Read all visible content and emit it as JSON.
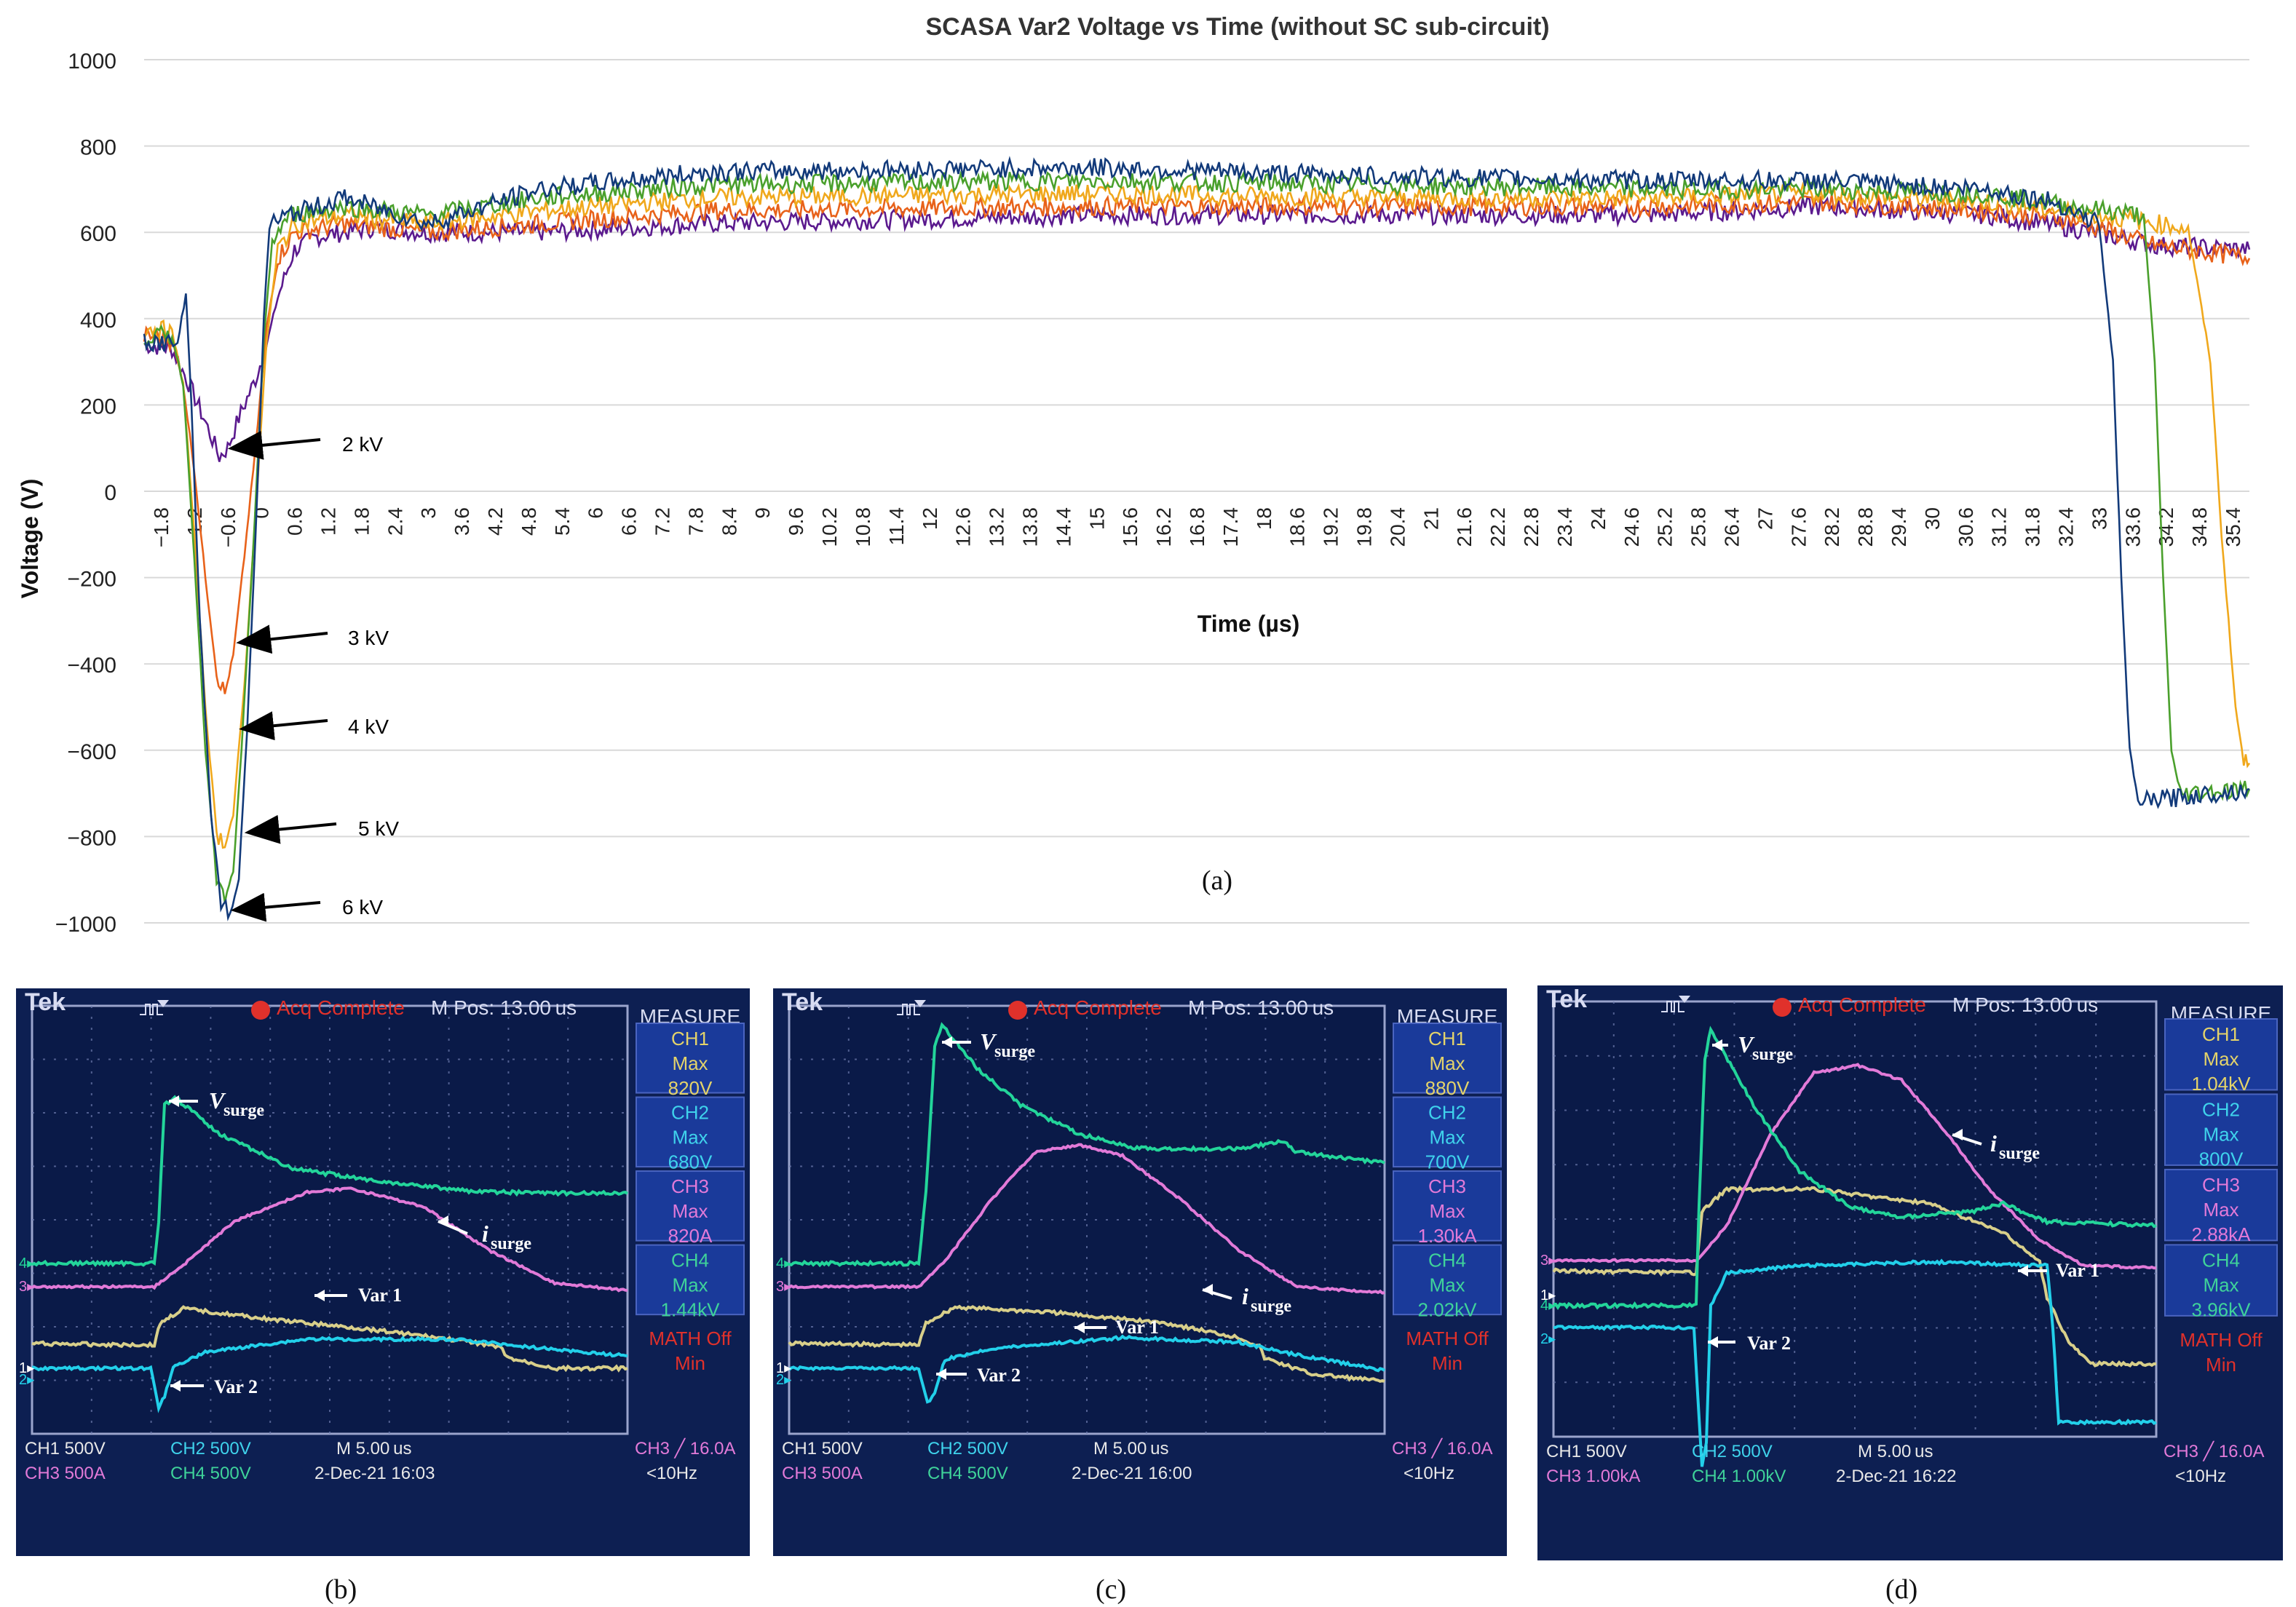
{
  "chart_data": {
    "type": "line",
    "title": "SCASA Var2 Voltage vs Time (without SC sub-circuit)",
    "xlabel": "Time (µs)",
    "ylabel": "Voltage (V)",
    "ylim": [
      -1000,
      1000
    ],
    "xlim": [
      -2.1,
      35.7
    ],
    "y_ticks": [
      "1000",
      "800",
      "600",
      "400",
      "200",
      "0",
      "−200",
      "−400",
      "−600",
      "−800",
      "−1000"
    ],
    "y_tick_values": [
      1000,
      800,
      600,
      400,
      200,
      0,
      -200,
      -400,
      -600,
      -800,
      -1000
    ],
    "x_ticks": [
      "−1.8",
      "−1.2",
      "−0.6",
      "0",
      "0.6",
      "1.2",
      "1.8",
      "2.4",
      "3",
      "3.6",
      "4.2",
      "4.8",
      "5.4",
      "6",
      "6.6",
      "7.2",
      "7.8",
      "8.4",
      "9",
      "9.6",
      "10.2",
      "10.8",
      "11.4",
      "12",
      "12.6",
      "13.2",
      "13.8",
      "14.4",
      "15",
      "15.6",
      "16.2",
      "16.8",
      "17.4",
      "18",
      "18.6",
      "19.2",
      "19.8",
      "20.4",
      "21",
      "21.6",
      "22.2",
      "22.8",
      "23.4",
      "24",
      "24.6",
      "25.2",
      "25.8",
      "26.4",
      "27",
      "27.6",
      "28.2",
      "28.8",
      "29.4",
      "30",
      "30.6",
      "31.2",
      "31.8",
      "32.4",
      "33",
      "33.6",
      "34.2",
      "34.8",
      "35.4"
    ],
    "grid": true,
    "caption": "(a)",
    "series": [
      {
        "name": "2 kV",
        "color": "#5b1a8e",
        "points": [
          [
            -2.1,
            340
          ],
          [
            -1.6,
            330
          ],
          [
            -1.3,
            250
          ],
          [
            -1.0,
            160
          ],
          [
            -0.75,
            80
          ],
          [
            -0.6,
            100
          ],
          [
            -0.4,
            170
          ],
          [
            -0.1,
            260
          ],
          [
            0.1,
            340
          ],
          [
            0.3,
            450
          ],
          [
            0.6,
            560
          ],
          [
            1.0,
            590
          ],
          [
            2.0,
            610
          ],
          [
            3.0,
            600
          ],
          [
            5.0,
            600
          ],
          [
            8.0,
            620
          ],
          [
            15.0,
            640
          ],
          [
            20.0,
            640
          ],
          [
            25.0,
            640
          ],
          [
            28.0,
            660
          ],
          [
            31.0,
            640
          ],
          [
            32.5,
            610
          ],
          [
            34.0,
            570
          ],
          [
            35.7,
            560
          ]
        ]
      },
      {
        "name": "3 kV",
        "color": "#e8621a",
        "points": [
          [
            -2.1,
            360
          ],
          [
            -1.6,
            350
          ],
          [
            -1.4,
            250
          ],
          [
            -1.2,
            50
          ],
          [
            -1.0,
            -200
          ],
          [
            -0.8,
            -420
          ],
          [
            -0.65,
            -470
          ],
          [
            -0.5,
            -380
          ],
          [
            -0.3,
            -150
          ],
          [
            -0.1,
            100
          ],
          [
            0.1,
            380
          ],
          [
            0.3,
            540
          ],
          [
            0.6,
            600
          ],
          [
            1.5,
            620
          ],
          [
            3.0,
            600
          ],
          [
            5.0,
            620
          ],
          [
            8.0,
            650
          ],
          [
            15.0,
            660
          ],
          [
            20.0,
            660
          ],
          [
            25.0,
            660
          ],
          [
            28.0,
            670
          ],
          [
            31.0,
            650
          ],
          [
            32.5,
            630
          ],
          [
            34.0,
            570
          ],
          [
            35.7,
            540
          ]
        ]
      },
      {
        "name": "4 kV",
        "color": "#f0a81c",
        "points": [
          [
            -2.1,
            380
          ],
          [
            -1.6,
            370
          ],
          [
            -1.4,
            250
          ],
          [
            -1.2,
            -100
          ],
          [
            -1.0,
            -500
          ],
          [
            -0.8,
            -790
          ],
          [
            -0.65,
            -820
          ],
          [
            -0.5,
            -750
          ],
          [
            -0.3,
            -450
          ],
          [
            -0.1,
            -50
          ],
          [
            0.1,
            350
          ],
          [
            0.3,
            560
          ],
          [
            0.6,
            620
          ],
          [
            1.5,
            640
          ],
          [
            3.0,
            620
          ],
          [
            5.0,
            650
          ],
          [
            8.0,
            680
          ],
          [
            15.0,
            690
          ],
          [
            20.0,
            680
          ],
          [
            25.0,
            680
          ],
          [
            28.0,
            690
          ],
          [
            31.0,
            670
          ],
          [
            33.0,
            640
          ],
          [
            34.6,
            610
          ],
          [
            35.0,
            300
          ],
          [
            35.2,
            -100
          ],
          [
            35.45,
            -500
          ],
          [
            35.6,
            -630
          ],
          [
            35.7,
            -630
          ]
        ]
      },
      {
        "name": "5 kV",
        "color": "#4aa02c",
        "points": [
          [
            -2.1,
            360
          ],
          [
            -1.6,
            360
          ],
          [
            -1.4,
            250
          ],
          [
            -1.2,
            -150
          ],
          [
            -1.0,
            -600
          ],
          [
            -0.8,
            -900
          ],
          [
            -0.65,
            -950
          ],
          [
            -0.5,
            -880
          ],
          [
            -0.35,
            -600
          ],
          [
            -0.15,
            -150
          ],
          [
            0.05,
            350
          ],
          [
            0.2,
            580
          ],
          [
            0.5,
            640
          ],
          [
            1.5,
            660
          ],
          [
            3.0,
            640
          ],
          [
            5.0,
            680
          ],
          [
            8.0,
            710
          ],
          [
            15.0,
            720
          ],
          [
            20.0,
            710
          ],
          [
            25.0,
            700
          ],
          [
            28.0,
            700
          ],
          [
            31.0,
            690
          ],
          [
            32.5,
            660
          ],
          [
            33.8,
            640
          ],
          [
            34.0,
            300
          ],
          [
            34.15,
            -200
          ],
          [
            34.3,
            -600
          ],
          [
            34.45,
            -700
          ],
          [
            35.7,
            -690
          ]
        ]
      },
      {
        "name": "6 kV",
        "color": "#123a7a",
        "points": [
          [
            -2.1,
            350
          ],
          [
            -1.5,
            340
          ],
          [
            -1.35,
            460
          ],
          [
            -1.25,
            200
          ],
          [
            -1.1,
            -300
          ],
          [
            -0.9,
            -750
          ],
          [
            -0.72,
            -950
          ],
          [
            -0.55,
            -980
          ],
          [
            -0.4,
            -900
          ],
          [
            -0.25,
            -550
          ],
          [
            -0.1,
            -100
          ],
          [
            0.05,
            400
          ],
          [
            0.15,
            620
          ],
          [
            0.5,
            640
          ],
          [
            1.5,
            680
          ],
          [
            3.0,
            620
          ],
          [
            5.0,
            700
          ],
          [
            8.0,
            740
          ],
          [
            15.0,
            750
          ],
          [
            20.0,
            730
          ],
          [
            25.0,
            720
          ],
          [
            28.0,
            720
          ],
          [
            31.0,
            700
          ],
          [
            32.2,
            670
          ],
          [
            33.0,
            620
          ],
          [
            33.25,
            300
          ],
          [
            33.4,
            -200
          ],
          [
            33.55,
            -600
          ],
          [
            33.7,
            -720
          ],
          [
            35.7,
            -690
          ]
        ]
      }
    ],
    "annotations": [
      {
        "label": "2 kV",
        "target": [
          -0.6,
          100
        ]
      },
      {
        "label": "3 kV",
        "target": [
          -0.45,
          -350
        ]
      },
      {
        "label": "4 kV",
        "target": [
          -0.4,
          -550
        ]
      },
      {
        "label": "5 kV",
        "target": [
          -0.3,
          -790
        ]
      },
      {
        "label": "6 kV",
        "target": [
          -0.55,
          -970
        ]
      }
    ]
  },
  "scopes": [
    {
      "caption": "(b)",
      "brand": "Tek",
      "status": "Acq Complete",
      "mpos": "M Pos: 13.00 us",
      "measure_title": "MEASURE",
      "measures": [
        {
          "ch": "CH1",
          "kind": "Max",
          "value": "820V"
        },
        {
          "ch": "CH2",
          "kind": "Max",
          "value": "680V"
        },
        {
          "ch": "CH3",
          "kind": "Max",
          "value": "820A"
        },
        {
          "ch": "CH4",
          "kind": "Max",
          "value": "1.44kV"
        }
      ],
      "math": "MATH Off",
      "math_sub": "Min",
      "ch1_scale": "CH1  500V",
      "ch2_scale": "CH2  500V",
      "ch3_scale": "CH3  500A",
      "ch4_scale": "CH4  500V",
      "timebase": "M 5.00 us",
      "date": "2-Dec-21 16:03",
      "trigger": "CH3 ╱ 16.0A",
      "freq": "<10Hz",
      "labels": {
        "vsurge": "V",
        "vsurge_sub": "surge",
        "isurge": "i",
        "isurge_sub": "surge",
        "var1": "Var 1",
        "var2": "Var 2"
      }
    },
    {
      "caption": "(c)",
      "brand": "Tek",
      "status": "Acq Complete",
      "mpos": "M Pos: 13.00 us",
      "measure_title": "MEASURE",
      "measures": [
        {
          "ch": "CH1",
          "kind": "Max",
          "value": "880V"
        },
        {
          "ch": "CH2",
          "kind": "Max",
          "value": "700V"
        },
        {
          "ch": "CH3",
          "kind": "Max",
          "value": "1.30kA"
        },
        {
          "ch": "CH4",
          "kind": "Max",
          "value": "2.02kV"
        }
      ],
      "math": "MATH Off",
      "math_sub": "Min",
      "ch1_scale": "CH1  500V",
      "ch2_scale": "CH2  500V",
      "ch3_scale": "CH3  500A",
      "ch4_scale": "CH4  500V",
      "timebase": "M 5.00 us",
      "date": "2-Dec-21 16:00",
      "trigger": "CH3 ╱ 16.0A",
      "freq": "<10Hz",
      "labels": {
        "vsurge": "V",
        "vsurge_sub": "surge",
        "isurge": "i",
        "isurge_sub": "surge",
        "var1": "Var 1",
        "var2": "Var 2"
      }
    },
    {
      "caption": "(d)",
      "brand": "Tek",
      "status": "Acq Complete",
      "mpos": "M Pos: 13.00 us",
      "measure_title": "MEASURE",
      "measures": [
        {
          "ch": "CH1",
          "kind": "Max",
          "value": "1.04kV"
        },
        {
          "ch": "CH2",
          "kind": "Max",
          "value": "800V"
        },
        {
          "ch": "CH3",
          "kind": "Max",
          "value": "2.88kA"
        },
        {
          "ch": "CH4",
          "kind": "Max",
          "value": "3.96kV"
        }
      ],
      "math": "MATH Off",
      "math_sub": "Min",
      "ch1_scale": "CH1  500V",
      "ch2_scale": "CH2  500V",
      "ch3_scale": "CH3  1.00kA",
      "ch4_scale": "CH4  1.00kV",
      "timebase": "M 5.00 us",
      "date": "2-Dec-21 16:22",
      "trigger": "CH3 ╱ 16.0A",
      "freq": "<10Hz",
      "labels": {
        "vsurge": "V",
        "vsurge_sub": "surge",
        "isurge": "i",
        "isurge_sub": "surge",
        "var1": "Var 1",
        "var2": "Var 2"
      }
    }
  ],
  "colors": {
    "scope_bg": "#0d1f52",
    "trace_green": "#23d59a",
    "trace_pink": "#e27ad8",
    "trace_yellow": "#d8cf8a",
    "trace_cyan": "#22d0ea",
    "tek_red": "#e0312b",
    "tek_text": "#d8dcf2",
    "measure_yellow": "#e4d36a",
    "measure_cyan": "#3fd3ec",
    "measure_pink": "#e27ad8",
    "measure_green": "#3fd39a"
  }
}
